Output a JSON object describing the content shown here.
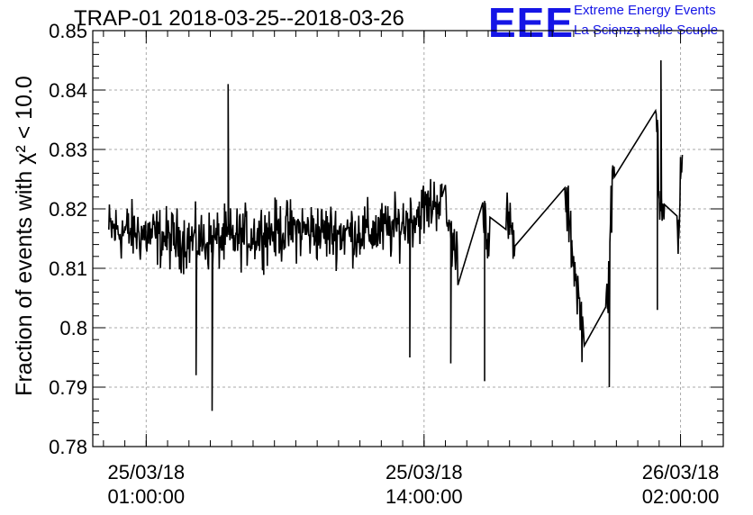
{
  "header": {
    "title": "TRAP-01 2018-03-25--2018-03-26",
    "logo_text": "EEE",
    "logo_line1": "Extreme Energy Events",
    "logo_line2": "La Scienza nelle Scuole"
  },
  "colors": {
    "series": "#000000",
    "grid": "#aaaaaa",
    "logo": "#1515e6"
  },
  "chart_data": {
    "type": "line",
    "title": "TRAP-01 2018-03-25--2018-03-26",
    "ylabel": "Fraction of events with χ² < 10.0",
    "xlabel": "",
    "ylim": [
      0.78,
      0.85
    ],
    "xlim": [
      "2018-03-24 22:30:00",
      "2018-03-26 04:00:00"
    ],
    "yticks": [
      "0.78",
      "0.79",
      "0.8",
      "0.81",
      "0.82",
      "0.83",
      "0.84",
      "0.85"
    ],
    "xticks": [
      {
        "t": "2018-03-25 01:00:00",
        "date": "25/03/18",
        "time": "01:00:00"
      },
      {
        "t": "2018-03-25 14:00:00",
        "date": "25/03/18",
        "time": "14:00:00"
      },
      {
        "t": "2018-03-26 02:00:00",
        "date": "26/03/18",
        "time": "02:00:00"
      }
    ],
    "grid": true,
    "series": [
      {
        "anchors": [
          [
            "2018-03-24 23:15:00",
            0.8165
          ],
          [
            "2018-03-25 00:30:00",
            0.816
          ],
          [
            "2018-03-25 02:00:00",
            0.815
          ],
          [
            "2018-03-25 03:30:00",
            0.8145
          ],
          [
            "2018-03-25 05:00:00",
            0.815
          ],
          [
            "2018-03-25 06:30:00",
            0.816
          ],
          [
            "2018-03-25 08:00:00",
            0.8165
          ],
          [
            "2018-03-25 09:30:00",
            0.816
          ],
          [
            "2018-03-25 11:00:00",
            0.816
          ],
          [
            "2018-03-25 12:30:00",
            0.8165
          ],
          [
            "2018-03-25 13:40:00",
            0.819
          ],
          [
            "2018-03-25 14:50:00",
            0.822
          ],
          [
            "2018-03-25 15:30:00",
            0.812
          ],
          [
            "2018-03-25 16:50:00",
            0.82
          ],
          [
            "2018-03-25 17:00:00",
            0.8155
          ],
          [
            "2018-03-25 17:55:00",
            0.818
          ],
          [
            "2018-03-25 18:10:00",
            0.8145
          ],
          [
            "2018-03-25 20:40:00",
            0.8205
          ],
          [
            "2018-03-25 20:55:00",
            0.814
          ],
          [
            "2018-03-25 21:30:00",
            0.797
          ],
          [
            "2018-03-25 22:35:00",
            0.8055
          ],
          [
            "2018-03-25 22:50:00",
            0.825
          ],
          [
            "2018-03-26 00:55:00",
            0.835
          ],
          [
            "2018-03-26 01:00:00",
            0.823
          ],
          [
            "2018-03-26 01:55:00",
            0.815
          ],
          [
            "2018-03-26 02:00:00",
            0.825
          ]
        ],
        "dense_intervals": [
          [
            "2018-03-24 23:15:00",
            "2018-03-25 14:50:00"
          ],
          [
            "2018-03-25 15:00:00",
            "2018-03-25 15:35:00"
          ],
          [
            "2018-03-25 16:45:00",
            "2018-03-25 17:05:00"
          ],
          [
            "2018-03-25 17:50:00",
            "2018-03-25 18:15:00"
          ],
          [
            "2018-03-25 20:35:00",
            "2018-03-25 21:25:00"
          ],
          [
            "2018-03-25 22:30:00",
            "2018-03-25 22:55:00"
          ],
          [
            "2018-03-26 00:50:00",
            "2018-03-26 01:15:00"
          ],
          [
            "2018-03-26 01:50:00",
            "2018-03-26 02:05:00"
          ]
        ],
        "spread": 0.0075,
        "extremes": [
          [
            "2018-03-25 04:05:00",
            0.786
          ],
          [
            "2018-03-25 03:20:00",
            0.792
          ],
          [
            "2018-03-25 04:50:00",
            0.841
          ],
          [
            "2018-03-25 13:20:00",
            0.795
          ],
          [
            "2018-03-25 15:15:00",
            0.794
          ],
          [
            "2018-03-25 16:50:00",
            0.791
          ],
          [
            "2018-03-25 22:40:00",
            0.79
          ],
          [
            "2018-03-26 01:05:00",
            0.845
          ],
          [
            "2018-03-26 00:55:00",
            0.803
          ]
        ]
      }
    ]
  }
}
